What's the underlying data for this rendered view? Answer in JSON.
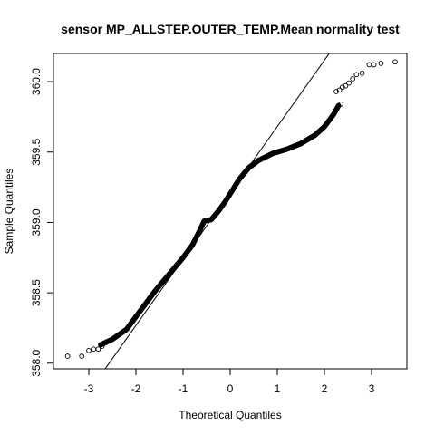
{
  "chart_data": {
    "type": "scatter",
    "subtype": "qq-plot",
    "title": "sensor MP_ALLSTEP.OUTER_TEMP.Mean normality test",
    "xlabel": "Theoretical Quantiles",
    "ylabel": "Sample Quantiles",
    "xlim": [
      -3.75,
      3.75
    ],
    "ylim": [
      357.96,
      360.2
    ],
    "x_ticks": [
      -3,
      -2,
      -1,
      0,
      1,
      2,
      3
    ],
    "x_tick_labels": [
      "-3",
      "-2",
      "-1",
      "0",
      "1",
      "2",
      "3"
    ],
    "y_ticks": [
      358.0,
      358.5,
      359.0,
      359.5,
      360.0
    ],
    "y_tick_labels": [
      "358.0",
      "358.5",
      "359.0",
      "359.5",
      "360.0"
    ],
    "grid": false,
    "marker": "open-circle",
    "reference_line": {
      "slope": 0.471,
      "intercept": 359.21
    },
    "curve_knots": [
      {
        "x": -2.75,
        "y": 358.13
      },
      {
        "x": -2.5,
        "y": 358.17
      },
      {
        "x": -2.2,
        "y": 358.24
      },
      {
        "x": -2.0,
        "y": 358.33
      },
      {
        "x": -1.8,
        "y": 358.42
      },
      {
        "x": -1.6,
        "y": 358.51
      },
      {
        "x": -1.4,
        "y": 358.59
      },
      {
        "x": -1.2,
        "y": 358.67
      },
      {
        "x": -1.0,
        "y": 358.75
      },
      {
        "x": -0.8,
        "y": 358.84
      },
      {
        "x": -0.65,
        "y": 358.94
      },
      {
        "x": -0.55,
        "y": 359.01
      },
      {
        "x": -0.4,
        "y": 359.02
      },
      {
        "x": -0.25,
        "y": 359.08
      },
      {
        "x": -0.1,
        "y": 359.15
      },
      {
        "x": 0.05,
        "y": 359.23
      },
      {
        "x": 0.2,
        "y": 359.31
      },
      {
        "x": 0.4,
        "y": 359.39
      },
      {
        "x": 0.6,
        "y": 359.44
      },
      {
        "x": 0.9,
        "y": 359.49
      },
      {
        "x": 1.2,
        "y": 359.52
      },
      {
        "x": 1.5,
        "y": 359.56
      },
      {
        "x": 1.8,
        "y": 359.62
      },
      {
        "x": 2.0,
        "y": 359.68
      },
      {
        "x": 2.2,
        "y": 359.77
      },
      {
        "x": 2.3,
        "y": 359.83
      }
    ],
    "tail_points": [
      {
        "x": -3.45,
        "y": 358.05
      },
      {
        "x": -3.15,
        "y": 358.05
      },
      {
        "x": -3.0,
        "y": 358.09
      },
      {
        "x": -2.9,
        "y": 358.1
      },
      {
        "x": -2.8,
        "y": 358.1
      },
      {
        "x": -2.72,
        "y": 358.12
      },
      {
        "x": 2.35,
        "y": 359.84
      },
      {
        "x": 2.25,
        "y": 359.93
      },
      {
        "x": 2.32,
        "y": 359.94
      },
      {
        "x": 2.38,
        "y": 359.96
      },
      {
        "x": 2.45,
        "y": 359.97
      },
      {
        "x": 2.52,
        "y": 359.99
      },
      {
        "x": 2.6,
        "y": 360.02
      },
      {
        "x": 2.68,
        "y": 360.05
      },
      {
        "x": 2.8,
        "y": 360.06
      },
      {
        "x": 2.95,
        "y": 360.12
      },
      {
        "x": 3.05,
        "y": 360.12
      },
      {
        "x": 3.2,
        "y": 360.13
      },
      {
        "x": 3.5,
        "y": 360.14
      }
    ]
  }
}
